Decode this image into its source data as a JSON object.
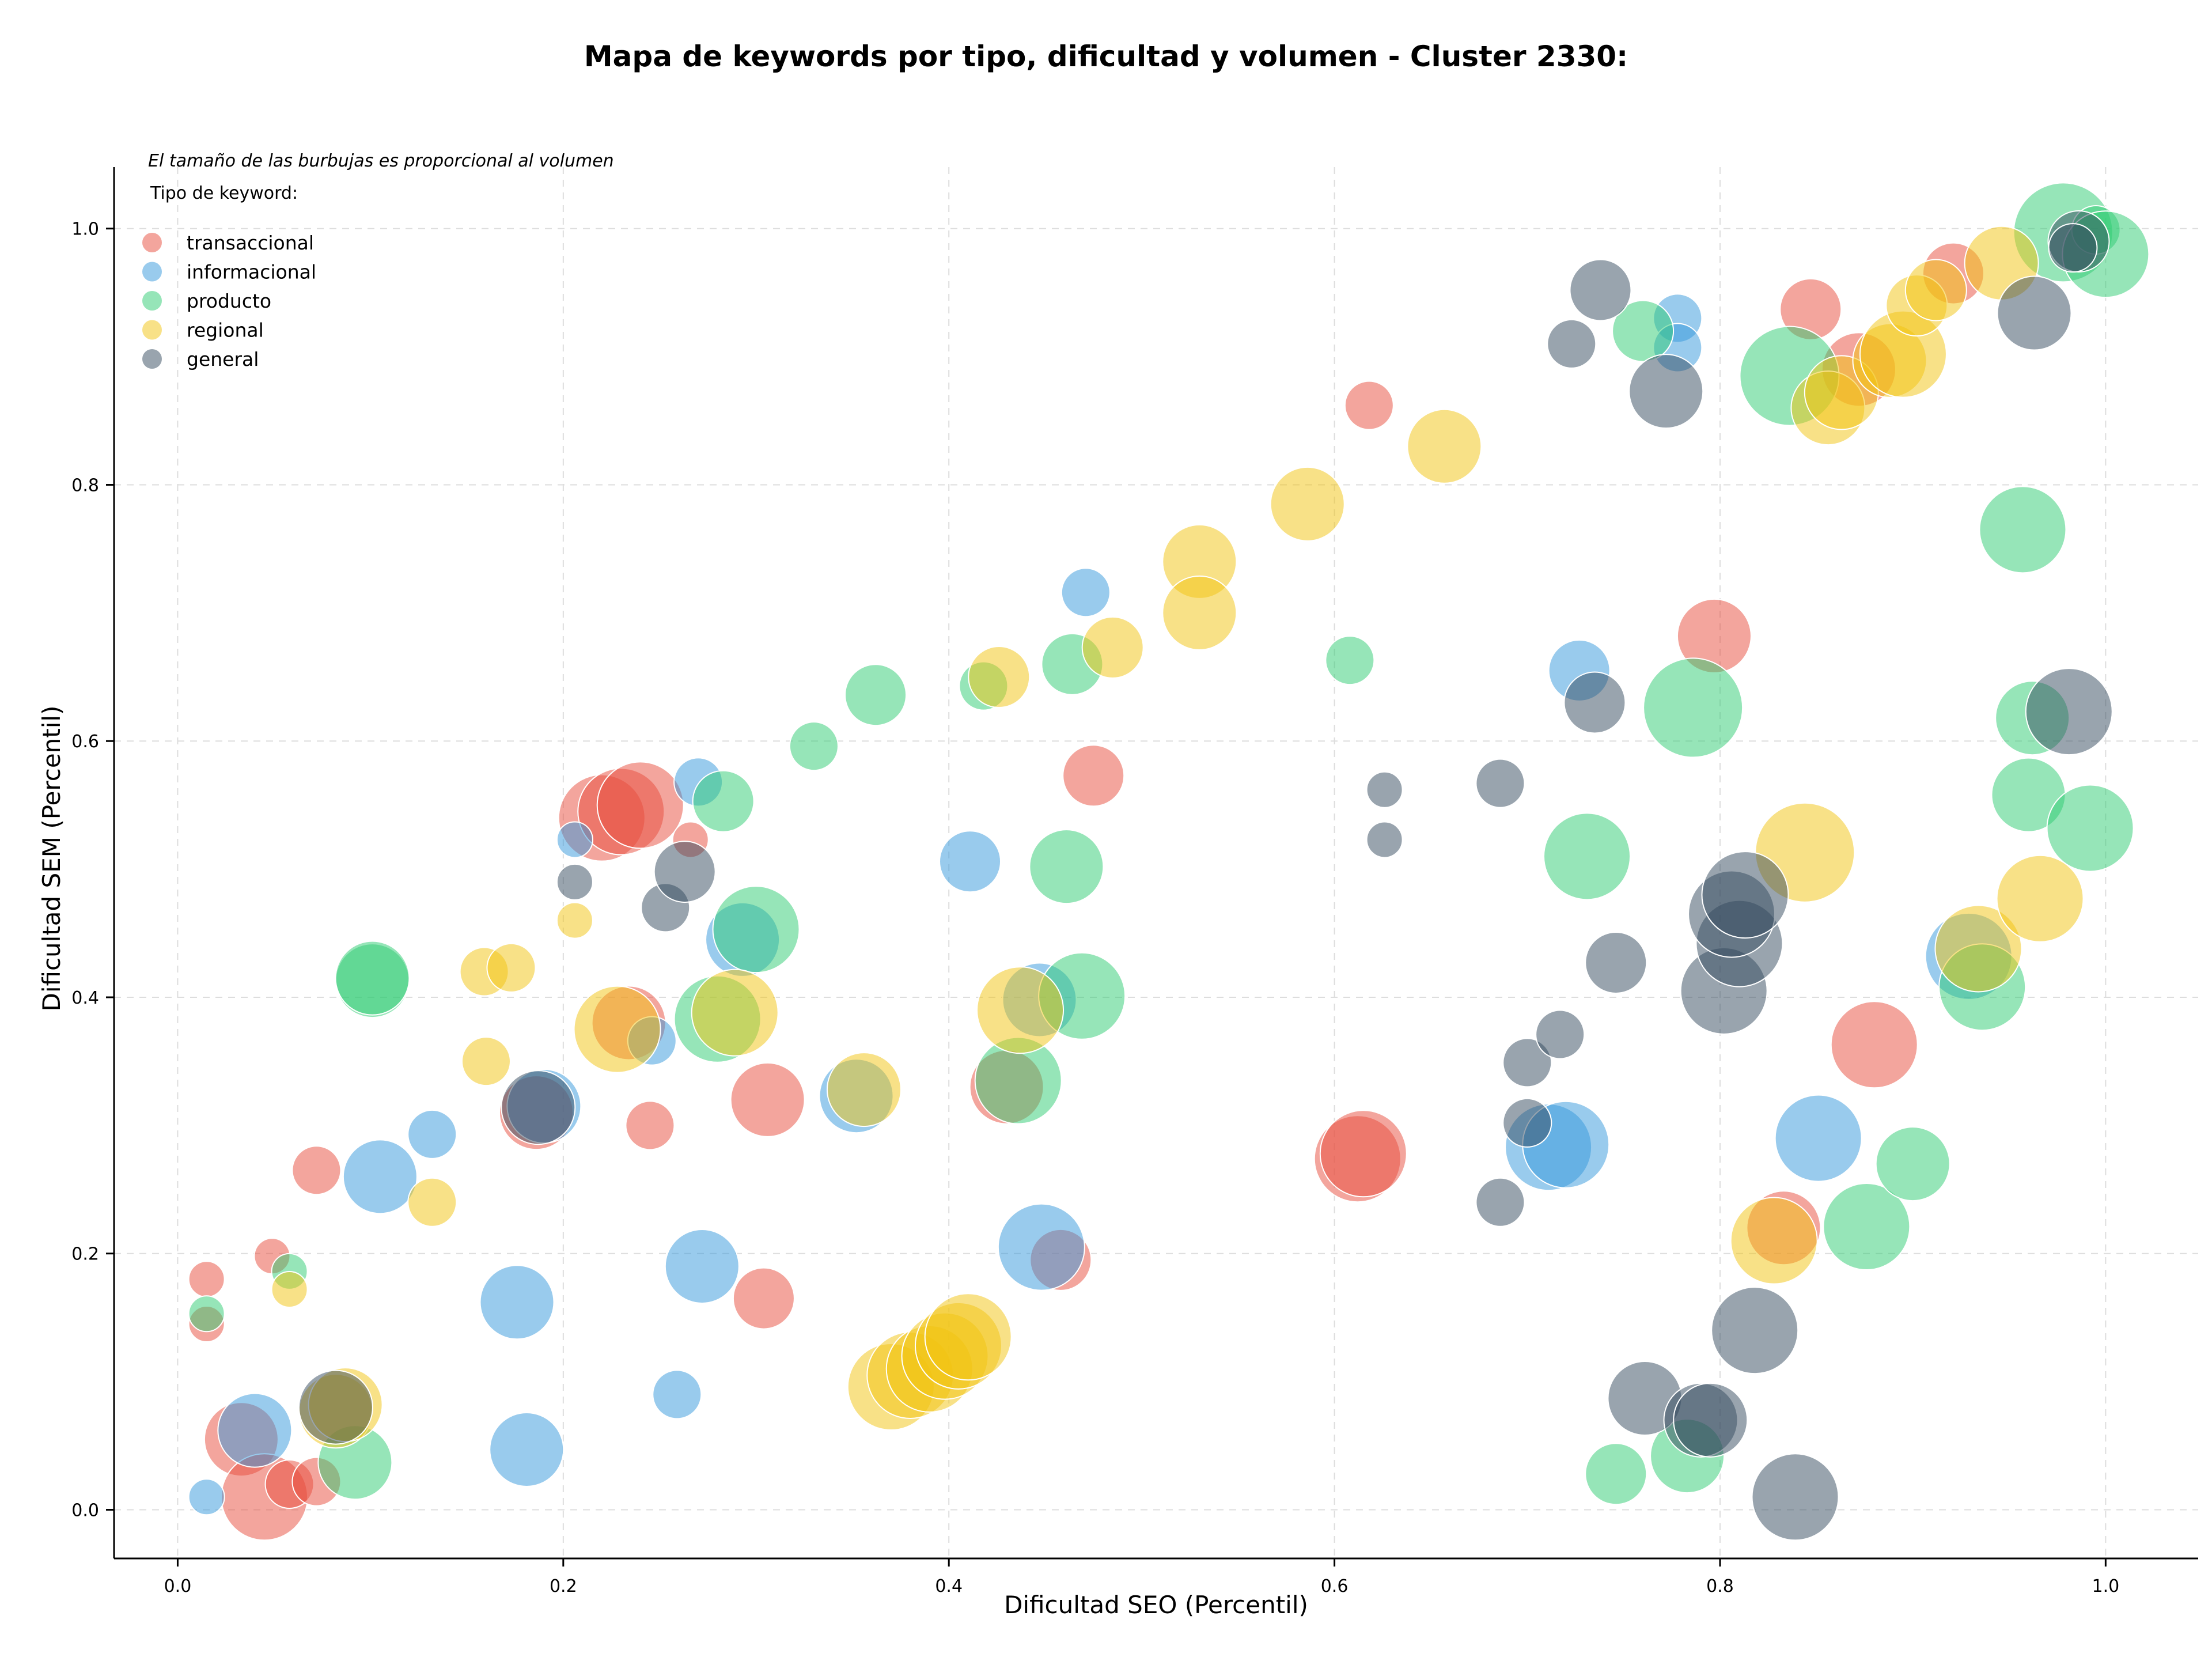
{
  "chart_data": {
    "type": "scatter",
    "title": "Mapa de keywords por tipo, dificultad y volumen - Cluster 2330:",
    "xlabel": "Dificultad SEO (Percentil)",
    "ylabel": "Dificultad SEM (Percentil)",
    "xlim": [
      -0.033,
      1.048
    ],
    "ylim": [
      -0.038,
      1.048
    ],
    "xticks": [
      "0.0",
      "0.2",
      "0.4",
      "0.6",
      "0.8",
      "1.0"
    ],
    "yticks": [
      "0.0",
      "0.2",
      "0.4",
      "0.6",
      "0.8",
      "1.0"
    ],
    "grid": true,
    "legend_placement": "top-left",
    "note": "El tamaño de las burbujas es proporcional al volumen",
    "legend_title": "Tipo de keyword:",
    "series": [
      {
        "name": "transaccional",
        "color": "#e74c3c",
        "points": [
          [
            0.015,
            0.18,
            1
          ],
          [
            0.015,
            0.145,
            1
          ],
          [
            0.049,
            0.198,
            1
          ],
          [
            0.033,
            0.055,
            4
          ],
          [
            0.045,
            0.01,
            5
          ],
          [
            0.058,
            0.02,
            2
          ],
          [
            0.072,
            0.022,
            2
          ],
          [
            0.072,
            0.265,
            2
          ],
          [
            0.186,
            0.31,
            4
          ],
          [
            0.22,
            0.54,
            5
          ],
          [
            0.23,
            0.545,
            5
          ],
          [
            0.24,
            0.55,
            5
          ],
          [
            0.234,
            0.38,
            4
          ],
          [
            0.266,
            0.523,
            1
          ],
          [
            0.245,
            0.3,
            2
          ],
          [
            0.306,
            0.32,
            4
          ],
          [
            0.304,
            0.165,
            3
          ],
          [
            0.43,
            0.33,
            4
          ],
          [
            0.475,
            0.573,
            3
          ],
          [
            0.458,
            0.195,
            3
          ],
          [
            0.618,
            0.862,
            2
          ],
          [
            0.612,
            0.274,
            5
          ],
          [
            0.615,
            0.278,
            5
          ],
          [
            0.797,
            0.682,
            4
          ],
          [
            0.847,
            0.937,
            3
          ],
          [
            0.872,
            0.89,
            4
          ],
          [
            0.88,
            0.363,
            5
          ],
          [
            0.833,
            0.22,
            4
          ],
          [
            0.921,
            0.965,
            3
          ]
        ]
      },
      {
        "name": "informacional",
        "color": "#3498db",
        "points": [
          [
            0.015,
            0.01,
            1
          ],
          [
            0.04,
            0.062,
            4
          ],
          [
            0.105,
            0.26,
            4
          ],
          [
            0.132,
            0.293,
            2
          ],
          [
            0.176,
            0.162,
            4
          ],
          [
            0.181,
            0.047,
            4
          ],
          [
            0.19,
            0.315,
            4
          ],
          [
            0.206,
            0.523,
            1
          ],
          [
            0.246,
            0.366,
            2
          ],
          [
            0.27,
            0.568,
            2
          ],
          [
            0.259,
            0.09,
            2
          ],
          [
            0.272,
            0.19,
            4
          ],
          [
            0.293,
            0.445,
            4
          ],
          [
            0.352,
            0.323,
            4
          ],
          [
            0.411,
            0.506,
            3
          ],
          [
            0.447,
            0.398,
            4
          ],
          [
            0.448,
            0.205,
            5
          ],
          [
            0.471,
            0.716,
            2
          ],
          [
            0.778,
            0.93,
            2
          ],
          [
            0.778,
            0.907,
            2
          ],
          [
            0.727,
            0.655,
            3
          ],
          [
            0.711,
            0.283,
            5
          ],
          [
            0.72,
            0.285,
            5
          ],
          [
            0.851,
            0.29,
            5
          ],
          [
            0.929,
            0.432,
            5
          ]
        ]
      },
      {
        "name": "producto",
        "color": "#2ecc71",
        "points": [
          [
            0.015,
            0.153,
            1
          ],
          [
            0.058,
            0.186,
            1
          ],
          [
            0.092,
            0.037,
            4
          ],
          [
            0.101,
            0.413,
            4
          ],
          [
            0.101,
            0.415,
            4
          ],
          [
            0.283,
            0.553,
            3
          ],
          [
            0.28,
            0.383,
            5
          ],
          [
            0.3,
            0.453,
            5
          ],
          [
            0.33,
            0.596,
            2
          ],
          [
            0.362,
            0.636,
            3
          ],
          [
            0.418,
            0.643,
            2
          ],
          [
            0.436,
            0.335,
            5
          ],
          [
            0.464,
            0.66,
            3
          ],
          [
            0.461,
            0.502,
            4
          ],
          [
            0.469,
            0.401,
            5
          ],
          [
            0.608,
            0.663,
            2
          ],
          [
            0.731,
            0.51,
            5
          ],
          [
            0.76,
            0.92,
            3
          ],
          [
            0.786,
            0.626,
            6
          ],
          [
            0.746,
            0.028,
            3
          ],
          [
            0.783,
            0.042,
            4
          ],
          [
            0.836,
            0.885,
            6
          ],
          [
            0.876,
            0.221,
            5
          ],
          [
            0.9,
            0.27,
            4
          ],
          [
            0.936,
            0.408,
            5
          ],
          [
            0.957,
            0.765,
            5
          ],
          [
            0.96,
            0.558,
            4
          ],
          [
            0.962,
            0.618,
            4
          ],
          [
            0.992,
            0.532,
            5
          ],
          [
            0.978,
            0.997,
            6
          ],
          [
            0.995,
            0.999,
            2
          ],
          [
            1.0,
            0.98,
            5
          ]
        ]
      },
      {
        "name": "regional",
        "color": "#f1c40f",
        "points": [
          [
            0.058,
            0.172,
            1
          ],
          [
            0.082,
            0.077,
            4
          ],
          [
            0.087,
            0.082,
            4
          ],
          [
            0.132,
            0.24,
            2
          ],
          [
            0.16,
            0.35,
            2
          ],
          [
            0.159,
            0.42,
            2
          ],
          [
            0.173,
            0.423,
            2
          ],
          [
            0.206,
            0.46,
            1
          ],
          [
            0.228,
            0.375,
            5
          ],
          [
            0.289,
            0.388,
            5
          ],
          [
            0.356,
            0.328,
            4
          ],
          [
            0.37,
            0.096,
            5
          ],
          [
            0.38,
            0.105,
            5
          ],
          [
            0.39,
            0.11,
            5
          ],
          [
            0.398,
            0.12,
            5
          ],
          [
            0.405,
            0.128,
            5
          ],
          [
            0.41,
            0.135,
            5
          ],
          [
            0.426,
            0.65,
            3
          ],
          [
            0.437,
            0.39,
            5
          ],
          [
            0.485,
            0.673,
            3
          ],
          [
            0.53,
            0.74,
            4
          ],
          [
            0.53,
            0.7,
            4
          ],
          [
            0.586,
            0.785,
            4
          ],
          [
            0.657,
            0.83,
            4
          ],
          [
            0.828,
            0.21,
            5
          ],
          [
            0.856,
            0.86,
            4
          ],
          [
            0.863,
            0.872,
            4
          ],
          [
            0.888,
            0.897,
            4
          ],
          [
            0.895,
            0.902,
            5
          ],
          [
            0.844,
            0.513,
            6
          ],
          [
            0.902,
            0.94,
            3
          ],
          [
            0.912,
            0.952,
            3
          ],
          [
            0.946,
            0.973,
            4
          ],
          [
            0.934,
            0.438,
            5
          ],
          [
            0.966,
            0.477,
            5
          ]
        ]
      },
      {
        "name": "general",
        "color": "#34495e",
        "points": [
          [
            0.082,
            0.08,
            4
          ],
          [
            0.206,
            0.49,
            1
          ],
          [
            0.253,
            0.47,
            2
          ],
          [
            0.263,
            0.498,
            3
          ],
          [
            0.187,
            0.314,
            4
          ],
          [
            0.626,
            0.562,
            1
          ],
          [
            0.626,
            0.523,
            1
          ],
          [
            0.686,
            0.567,
            2
          ],
          [
            0.686,
            0.24,
            2
          ],
          [
            0.7,
            0.349,
            2
          ],
          [
            0.7,
            0.302,
            2
          ],
          [
            0.717,
            0.371,
            2
          ],
          [
            0.723,
            0.91,
            2
          ],
          [
            0.738,
            0.952,
            3
          ],
          [
            0.735,
            0.63,
            3
          ],
          [
            0.746,
            0.427,
            3
          ],
          [
            0.761,
            0.087,
            4
          ],
          [
            0.772,
            0.873,
            4
          ],
          [
            0.79,
            0.07,
            4
          ],
          [
            0.795,
            0.07,
            4
          ],
          [
            0.802,
            0.405,
            5
          ],
          [
            0.81,
            0.442,
            5
          ],
          [
            0.806,
            0.465,
            5
          ],
          [
            0.813,
            0.48,
            5
          ],
          [
            0.818,
            0.14,
            5
          ],
          [
            0.839,
            0.01,
            5
          ],
          [
            0.963,
            0.934,
            4
          ],
          [
            0.981,
            0.623,
            5
          ],
          [
            0.986,
            0.99,
            3
          ],
          [
            0.983,
            0.985,
            2
          ]
        ]
      }
    ]
  }
}
